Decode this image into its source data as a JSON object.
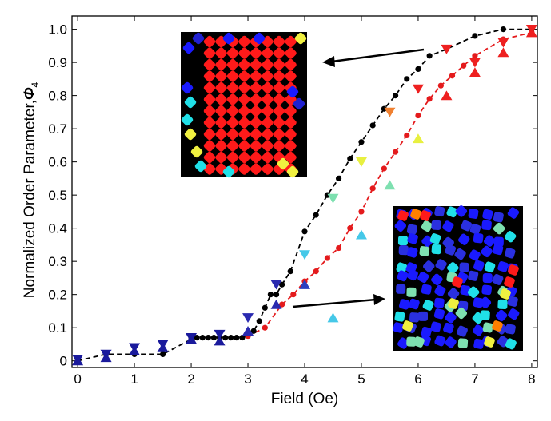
{
  "chart_data": {
    "type": "scatter",
    "xlabel": "Field (Oe)",
    "ylabel": "Normalized Order Parameter,",
    "ylabel_symbol": "Φ",
    "ylabel_subscript": "4",
    "xlim": [
      -0.1,
      8.1
    ],
    "ylim": [
      -0.02,
      1.04
    ],
    "xticks": [
      "0",
      "1",
      "2",
      "3",
      "4",
      "5",
      "6",
      "7",
      "8"
    ],
    "yticks": [
      "0",
      "0.1",
      "0.2",
      "0.3",
      "0.4",
      "0.5",
      "0.6",
      "0.7",
      "0.8",
      "0.9",
      "1.0"
    ],
    "series": [
      {
        "name": "black dots (dashed fit)",
        "color": "#000000",
        "marker": "circle",
        "line": "dashed",
        "x": [
          0,
          0.5,
          1,
          1.5,
          2,
          2.1,
          2.2,
          2.3,
          2.4,
          2.5,
          2.6,
          2.7,
          2.8,
          2.9,
          3.0,
          3.1,
          3.2,
          3.3,
          3.4,
          3.5,
          3.6,
          3.75,
          4.0,
          4.2,
          4.4,
          4.6,
          4.8,
          5.0,
          5.2,
          5.4,
          5.6,
          5.8,
          6.0,
          6.2,
          6.5,
          7.0,
          7.5,
          8.0
        ],
        "y": [
          0.0,
          0.02,
          0.02,
          0.02,
          0.065,
          0.07,
          0.07,
          0.07,
          0.07,
          0.07,
          0.07,
          0.07,
          0.07,
          0.07,
          0.075,
          0.09,
          0.12,
          0.16,
          0.2,
          0.2,
          0.23,
          0.27,
          0.39,
          0.44,
          0.5,
          0.55,
          0.61,
          0.66,
          0.71,
          0.76,
          0.8,
          0.85,
          0.88,
          0.92,
          0.94,
          0.98,
          1.0,
          1.0
        ]
      },
      {
        "name": "red dots (dashed fit)",
        "color": "#e41a1c",
        "marker": "circle",
        "line": "dashed",
        "x": [
          3.0,
          3.3,
          3.6,
          3.8,
          4.0,
          4.2,
          4.4,
          4.6,
          4.8,
          5.0,
          5.2,
          5.4,
          5.6,
          5.8,
          6.0,
          6.2,
          6.4,
          6.6,
          6.8,
          7.0,
          7.5,
          8.0
        ],
        "y": [
          0.075,
          0.1,
          0.17,
          0.2,
          0.24,
          0.27,
          0.31,
          0.34,
          0.4,
          0.45,
          0.52,
          0.58,
          0.63,
          0.68,
          0.74,
          0.79,
          0.83,
          0.86,
          0.89,
          0.92,
          0.97,
          0.99
        ]
      },
      {
        "name": "down triangles (color-coded by order)",
        "marker": "triangle-down",
        "x": [
          0,
          0.5,
          1,
          1.5,
          2,
          2.5,
          3,
          3.5,
          4,
          4.5,
          5,
          5.5,
          6,
          6.5,
          7,
          7.5,
          8
        ],
        "y": [
          0.005,
          0.02,
          0.04,
          0.05,
          0.07,
          0.08,
          0.13,
          0.23,
          0.32,
          0.49,
          0.6,
          0.75,
          0.82,
          0.94,
          0.9,
          0.96,
          1.0
        ],
        "colors": [
          "#1a1a9c",
          "#1a1a9c",
          "#1a1a9c",
          "#1a1a9c",
          "#1a1a9c",
          "#1a1a9c",
          "#2a2ab0",
          "#2a2ab0",
          "#45c8e8",
          "#7ee0b0",
          "#e8f040",
          "#f08030",
          "#ee2020",
          "#ee2020",
          "#ee2020",
          "#ee2020",
          "#ee2020"
        ]
      },
      {
        "name": "up triangles (color-coded by order)",
        "marker": "triangle-up",
        "x": [
          0,
          0.5,
          1,
          1.5,
          2,
          2.5,
          3,
          3.5,
          4,
          4.5,
          5,
          5.5,
          6,
          6.5,
          7,
          7.5,
          8
        ],
        "y": [
          0.0,
          0.01,
          0.03,
          0.04,
          0.065,
          0.06,
          0.09,
          0.17,
          0.23,
          0.13,
          0.38,
          0.53,
          0.67,
          0.8,
          0.87,
          0.93,
          0.99
        ],
        "colors": [
          "#1a1a9c",
          "#1a1a9c",
          "#1a1a9c",
          "#1a1a9c",
          "#1a1a9c",
          "#1a1a9c",
          "#2a2ab0",
          "#2a2ab0",
          "#2a40c0",
          "#45c8e8",
          "#45c8e8",
          "#7ee0b0",
          "#e8f040",
          "#ee2020",
          "#ee2020",
          "#ee2020",
          "#ee2020"
        ]
      }
    ]
  },
  "colors": {
    "black_series": "#000000",
    "red_series": "#e41a1c",
    "inset_background": "#000000"
  }
}
